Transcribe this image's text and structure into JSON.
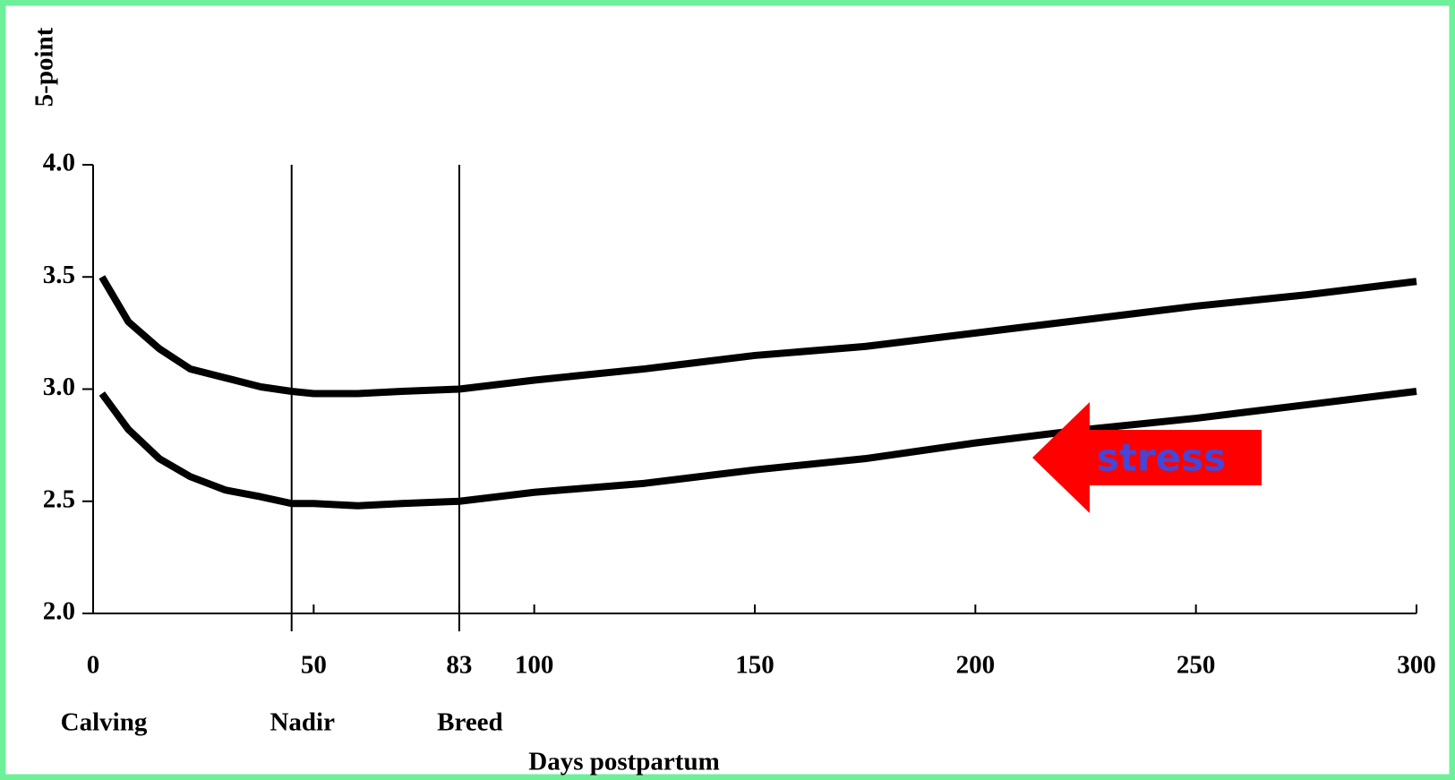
{
  "chart_data": {
    "type": "line",
    "y_label": "5-point",
    "x_label": "Days postpartum",
    "x": [
      2,
      8,
      15,
      22,
      30,
      38,
      45,
      50,
      60,
      70,
      83,
      100,
      125,
      150,
      175,
      200,
      225,
      250,
      275,
      300
    ],
    "series": [
      {
        "color": "#000000",
        "values": [
          3.5,
          3.3,
          3.18,
          3.09,
          3.05,
          3.01,
          2.99,
          2.98,
          2.98,
          2.99,
          3.0,
          3.04,
          3.09,
          3.15,
          3.19,
          3.25,
          3.31,
          3.37,
          3.42,
          3.48
        ]
      },
      {
        "color": "#000000",
        "values": [
          2.98,
          2.82,
          2.69,
          2.61,
          2.55,
          2.52,
          2.49,
          2.49,
          2.48,
          2.49,
          2.5,
          2.54,
          2.58,
          2.64,
          2.69,
          2.76,
          2.82,
          2.87,
          2.93,
          2.99
        ]
      }
    ],
    "xlim": [
      0,
      300
    ],
    "xticks": [
      0,
      50,
      83,
      100,
      150,
      200,
      250,
      300
    ],
    "ylim": [
      2,
      4
    ],
    "yticks": [
      {
        "value": 2,
        "label": "2.0"
      },
      {
        "value": 2.5,
        "label": "2.5"
      },
      {
        "value": 3,
        "label": "3.0"
      },
      {
        "value": 3.5,
        "label": "3.5"
      },
      {
        "value": 4,
        "label": "4.0"
      }
    ],
    "vlines": [
      45,
      83
    ],
    "annotations": [
      {
        "x": 0,
        "label": "Calving"
      },
      {
        "x": 45,
        "label": "Nadir"
      },
      {
        "x": 83,
        "label": "Breed"
      }
    ],
    "arrow_label": "stress",
    "arrow_color": "#ff0000",
    "arrow_text_color": "#4646d8"
  }
}
